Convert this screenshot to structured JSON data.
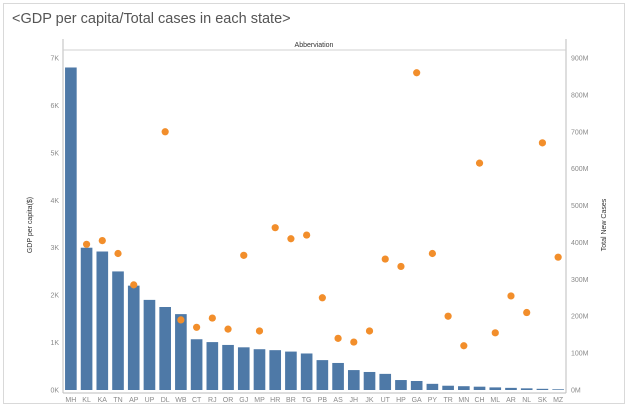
{
  "title": "<GDP per capita/Total cases in each state>",
  "chart_data": {
    "type": "bar+scatter",
    "header": "Abberviation",
    "xlabel": "",
    "ylabel": "GDP per capita($)",
    "y2label": "Total New Cases",
    "categories": [
      "MH",
      "KL",
      "KA",
      "TN",
      "AP",
      "UP",
      "DL",
      "WB",
      "CT",
      "RJ",
      "OR",
      "GJ",
      "MP",
      "HR",
      "BR",
      "TG",
      "PB",
      "AS",
      "JH",
      "JK",
      "UT",
      "HP",
      "GA",
      "PY",
      "TR",
      "MN",
      "CH",
      "ML",
      "AR",
      "NL",
      "SK",
      "MZ"
    ],
    "ylim": [
      0,
      7000
    ],
    "y_ticks": [
      {
        "v": 0,
        "t": "0K"
      },
      {
        "v": 1000,
        "t": "1K"
      },
      {
        "v": 2000,
        "t": "2K"
      },
      {
        "v": 3000,
        "t": "3K"
      },
      {
        "v": 4000,
        "t": "4K"
      },
      {
        "v": 5000,
        "t": "5K"
      },
      {
        "v": 6000,
        "t": "6K"
      },
      {
        "v": 7000,
        "t": "7K"
      }
    ],
    "y2lim": [
      0,
      900
    ],
    "y2_ticks": [
      {
        "v": 0,
        "t": "0M"
      },
      {
        "v": 100,
        "t": "100M"
      },
      {
        "v": 200,
        "t": "200M"
      },
      {
        "v": 300,
        "t": "300M"
      },
      {
        "v": 400,
        "t": "400M"
      },
      {
        "v": 500,
        "t": "500M"
      },
      {
        "v": 600,
        "t": "600M"
      },
      {
        "v": 700,
        "t": "700M"
      },
      {
        "v": 800,
        "t": "800M"
      },
      {
        "v": 900,
        "t": "900M"
      }
    ],
    "series": [
      {
        "type": "bar",
        "axis": "left",
        "color": "#4e79a7",
        "values": [
          6800,
          3000,
          2920,
          2500,
          2200,
          1900,
          1750,
          1600,
          1070,
          1010,
          950,
          900,
          860,
          840,
          810,
          770,
          630,
          570,
          420,
          380,
          340,
          210,
          190,
          130,
          90,
          80,
          70,
          55,
          45,
          35,
          25,
          15
        ]
      },
      {
        "type": "scatter",
        "axis": "right",
        "color": "#f28e2b",
        "values": [
          null,
          395,
          405,
          370,
          285,
          null,
          700,
          190,
          170,
          195,
          165,
          365,
          160,
          440,
          410,
          420,
          250,
          140,
          130,
          160,
          355,
          335,
          860,
          370,
          200,
          120,
          615,
          155,
          255,
          210,
          670,
          360
        ]
      }
    ]
  }
}
